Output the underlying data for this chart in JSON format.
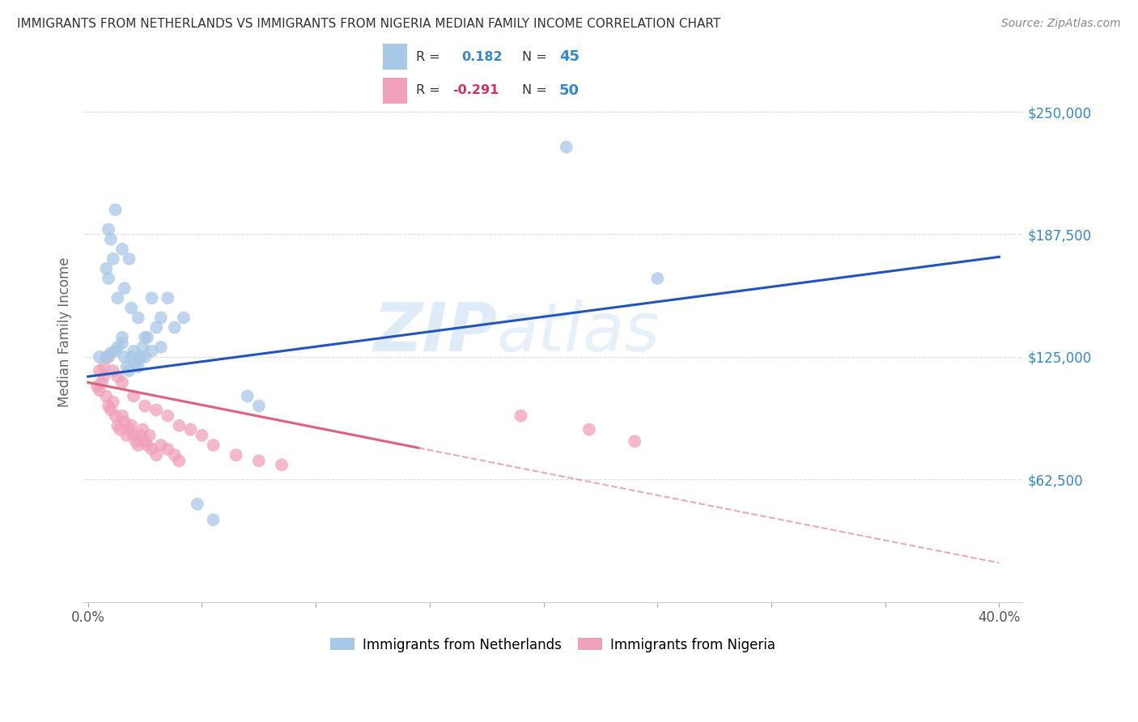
{
  "title": "IMMIGRANTS FROM NETHERLANDS VS IMMIGRANTS FROM NIGERIA MEDIAN FAMILY INCOME CORRELATION CHART",
  "source": "Source: ZipAtlas.com",
  "ylabel": "Median Family Income",
  "ytick_labels": [
    "$62,500",
    "$125,000",
    "$187,500",
    "$250,000"
  ],
  "ytick_values": [
    62500,
    125000,
    187500,
    250000
  ],
  "ylim": [
    0,
    275000
  ],
  "xlim": [
    -0.002,
    0.41
  ],
  "watermark_text": "ZIPatlas",
  "netherlands_color": "#a8c8e8",
  "nigeria_color": "#f0a0b8",
  "netherlands_line_color": "#2255bb",
  "nigeria_line_color": "#e06080",
  "background_color": "#ffffff",
  "grid_color": "#dddddd",
  "title_color": "#333333",
  "ytick_color": "#3388cc",
  "xtick_color": "#555555",
  "nl_legend_patch": "#a8c8e8",
  "ng_legend_patch": "#f0a0b8",
  "netherlands_x": [
    0.005,
    0.008,
    0.01,
    0.012,
    0.013,
    0.015,
    0.015,
    0.016,
    0.017,
    0.018,
    0.019,
    0.02,
    0.021,
    0.022,
    0.023,
    0.024,
    0.025,
    0.026,
    0.028,
    0.03,
    0.032,
    0.035,
    0.008,
    0.009,
    0.011,
    0.013,
    0.016,
    0.019,
    0.022,
    0.025,
    0.028,
    0.032,
    0.038,
    0.042,
    0.048,
    0.055,
    0.07,
    0.075,
    0.009,
    0.01,
    0.012,
    0.015,
    0.018,
    0.25,
    0.21
  ],
  "netherlands_y": [
    125000,
    125000,
    127000,
    128000,
    130000,
    132000,
    135000,
    125000,
    120000,
    118000,
    125000,
    128000,
    122000,
    120000,
    125000,
    130000,
    125000,
    135000,
    128000,
    140000,
    130000,
    155000,
    170000,
    165000,
    175000,
    155000,
    160000,
    150000,
    145000,
    135000,
    155000,
    145000,
    140000,
    145000,
    50000,
    42000,
    105000,
    100000,
    190000,
    185000,
    200000,
    180000,
    175000,
    165000,
    232000
  ],
  "nigeria_x": [
    0.004,
    0.005,
    0.006,
    0.007,
    0.008,
    0.009,
    0.01,
    0.011,
    0.012,
    0.013,
    0.014,
    0.015,
    0.016,
    0.017,
    0.018,
    0.019,
    0.02,
    0.021,
    0.022,
    0.023,
    0.024,
    0.025,
    0.026,
    0.027,
    0.028,
    0.03,
    0.032,
    0.035,
    0.038,
    0.04,
    0.005,
    0.007,
    0.009,
    0.011,
    0.013,
    0.015,
    0.02,
    0.025,
    0.03,
    0.035,
    0.04,
    0.045,
    0.05,
    0.055,
    0.065,
    0.075,
    0.085,
    0.19,
    0.22,
    0.24
  ],
  "nigeria_y": [
    110000,
    108000,
    112000,
    115000,
    105000,
    100000,
    98000,
    102000,
    95000,
    90000,
    88000,
    95000,
    92000,
    85000,
    88000,
    90000,
    85000,
    82000,
    80000,
    85000,
    88000,
    82000,
    80000,
    85000,
    78000,
    75000,
    80000,
    78000,
    75000,
    72000,
    118000,
    120000,
    125000,
    118000,
    115000,
    112000,
    105000,
    100000,
    98000,
    95000,
    90000,
    88000,
    85000,
    80000,
    75000,
    72000,
    70000,
    95000,
    88000,
    82000
  ],
  "nl_line_x0": 0.0,
  "nl_line_x1": 0.4,
  "nl_line_y0": 115000,
  "nl_line_y1": 176000,
  "ng_line_x0": 0.0,
  "ng_line_x1": 0.4,
  "ng_line_y0": 112000,
  "ng_line_y1": 20000,
  "ng_solid_end": 0.145,
  "xtick_positions": [
    0.0,
    0.05,
    0.1,
    0.15,
    0.2,
    0.25,
    0.3,
    0.35,
    0.4
  ],
  "xtick_show_labels": [
    0,
    8
  ]
}
